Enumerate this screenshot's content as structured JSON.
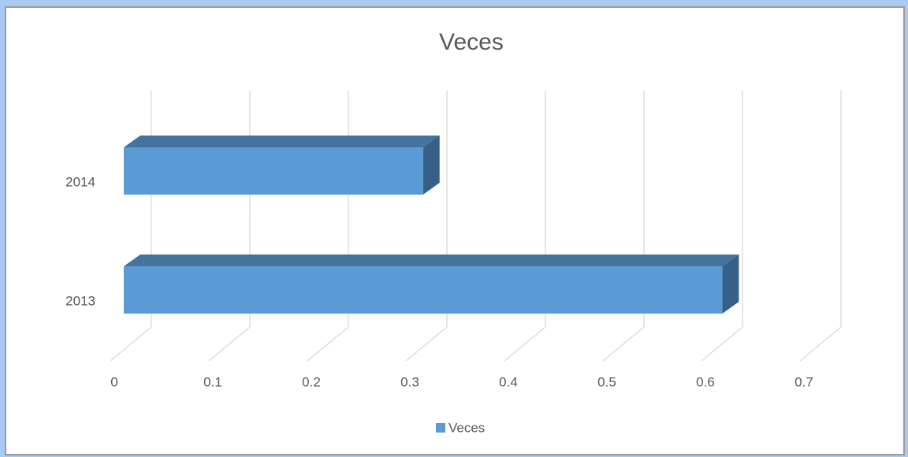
{
  "chart_data": {
    "type": "bar3d",
    "orientation": "horizontal",
    "title": "Veces",
    "categories": [
      "2013",
      "2014"
    ],
    "series": [
      {
        "name": "Veces",
        "color": "#5b9bd5",
        "values": [
          0.6,
          0.3
        ]
      }
    ],
    "xlim": [
      0,
      0.7
    ],
    "xticks": [
      0,
      0.1,
      0.2,
      0.3,
      0.4,
      0.5,
      0.6,
      0.7
    ],
    "grid": true,
    "legend": "bottom"
  }
}
